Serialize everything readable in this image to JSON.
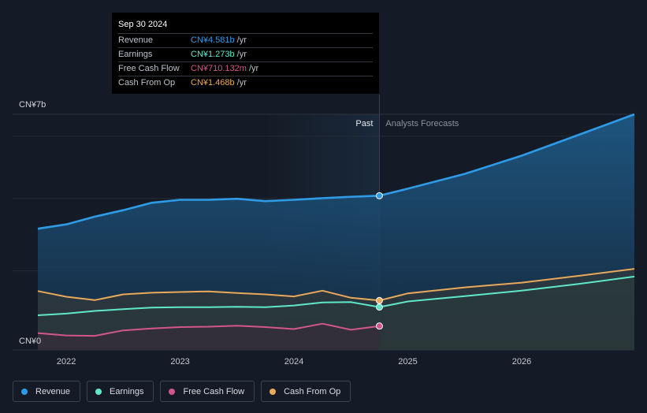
{
  "tooltip": {
    "date": "Sep 30 2024",
    "rows": [
      {
        "label": "Revenue",
        "value": "CN¥4.581b",
        "unit": "/yr",
        "color": "#2f9be6"
      },
      {
        "label": "Earnings",
        "value": "CN¥1.273b",
        "unit": "/yr",
        "color": "#5fe8c8"
      },
      {
        "label": "Free Cash Flow",
        "value": "CN¥710.132m",
        "unit": "/yr",
        "color": "#d1568a"
      },
      {
        "label": "Cash From Op",
        "value": "CN¥1.468b",
        "unit": "/yr",
        "color": "#e8a95a"
      }
    ]
  },
  "legend": [
    {
      "label": "Revenue",
      "color": "#2f9be6"
    },
    {
      "label": "Earnings",
      "color": "#5fe8c8"
    },
    {
      "label": "Free Cash Flow",
      "color": "#d1568a"
    },
    {
      "label": "Cash From Op",
      "color": "#e8a95a"
    }
  ],
  "chart_data": {
    "type": "area",
    "ylim": [
      0,
      7
    ],
    "y_unit": "CN¥ b",
    "y_tick_labels": [
      "CN¥7b",
      "CN¥0"
    ],
    "x_tick_labels": [
      "2022",
      "2023",
      "2024",
      "2025",
      "2026"
    ],
    "xlim": [
      2021.75,
      2026.99
    ],
    "divider_x": 2024.75,
    "past_label": "Past",
    "forecast_label": "Analysts Forecasts",
    "grid": true,
    "legend_position": "bottom-left",
    "series": [
      {
        "name": "Revenue",
        "color": "#2f9be6",
        "filled": true,
        "points": [
          [
            2021.75,
            3.6
          ],
          [
            2022.0,
            3.73
          ],
          [
            2022.25,
            3.96
          ],
          [
            2022.5,
            4.15
          ],
          [
            2022.75,
            4.37
          ],
          [
            2023.0,
            4.46
          ],
          [
            2023.25,
            4.46
          ],
          [
            2023.5,
            4.49
          ],
          [
            2023.75,
            4.42
          ],
          [
            2024.0,
            4.46
          ],
          [
            2024.25,
            4.51
          ],
          [
            2024.5,
            4.55
          ],
          [
            2024.75,
            4.581
          ],
          [
            2025.0,
            4.79
          ],
          [
            2025.5,
            5.23
          ],
          [
            2026.0,
            5.77
          ],
          [
            2026.5,
            6.39
          ],
          [
            2026.99,
            7.0
          ]
        ]
      },
      {
        "name": "Earnings",
        "color": "#5fe8c8",
        "filled": false,
        "points": [
          [
            2021.75,
            1.03
          ],
          [
            2022.0,
            1.08
          ],
          [
            2022.25,
            1.16
          ],
          [
            2022.5,
            1.21
          ],
          [
            2022.75,
            1.26
          ],
          [
            2023.0,
            1.27
          ],
          [
            2023.25,
            1.27
          ],
          [
            2023.5,
            1.28
          ],
          [
            2023.75,
            1.27
          ],
          [
            2024.0,
            1.32
          ],
          [
            2024.25,
            1.41
          ],
          [
            2024.5,
            1.42
          ],
          [
            2024.75,
            1.273
          ],
          [
            2025.0,
            1.44
          ],
          [
            2025.5,
            1.6
          ],
          [
            2026.0,
            1.76
          ],
          [
            2026.5,
            1.96
          ],
          [
            2026.99,
            2.18
          ]
        ]
      },
      {
        "name": "Free Cash Flow",
        "color": "#d1568a",
        "filled": false,
        "points": [
          [
            2021.75,
            0.5
          ],
          [
            2022.0,
            0.43
          ],
          [
            2022.25,
            0.42
          ],
          [
            2022.5,
            0.58
          ],
          [
            2022.75,
            0.64
          ],
          [
            2023.0,
            0.68
          ],
          [
            2023.25,
            0.69
          ],
          [
            2023.5,
            0.72
          ],
          [
            2023.75,
            0.68
          ],
          [
            2024.0,
            0.62
          ],
          [
            2024.25,
            0.78
          ],
          [
            2024.5,
            0.6
          ],
          [
            2024.75,
            0.71
          ]
        ]
      },
      {
        "name": "Cash From Op",
        "color": "#e8a95a",
        "filled": false,
        "points": [
          [
            2021.75,
            1.75
          ],
          [
            2022.0,
            1.58
          ],
          [
            2022.25,
            1.48
          ],
          [
            2022.5,
            1.65
          ],
          [
            2022.75,
            1.7
          ],
          [
            2023.0,
            1.72
          ],
          [
            2023.25,
            1.74
          ],
          [
            2023.5,
            1.69
          ],
          [
            2023.75,
            1.65
          ],
          [
            2024.0,
            1.59
          ],
          [
            2024.25,
            1.76
          ],
          [
            2024.5,
            1.55
          ],
          [
            2024.75,
            1.468
          ],
          [
            2025.0,
            1.68
          ],
          [
            2025.5,
            1.86
          ],
          [
            2026.0,
            2.0
          ],
          [
            2026.5,
            2.2
          ],
          [
            2026.99,
            2.41
          ]
        ]
      }
    ]
  }
}
